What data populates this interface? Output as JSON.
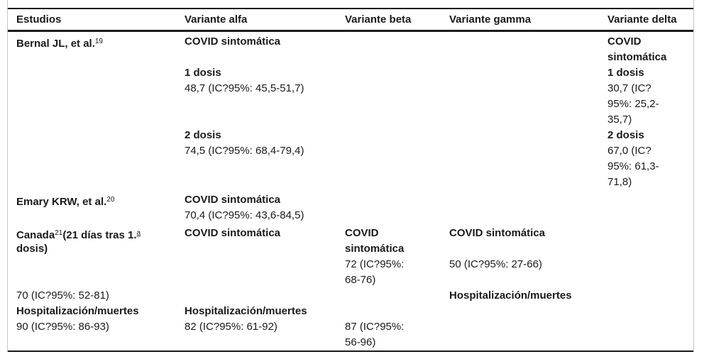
{
  "colors": {
    "rule": "#1a1a1a",
    "outer_border": "#c4c4c4",
    "text": "#1a1a1a",
    "background": "#ffffff"
  },
  "table": {
    "columns": [
      {
        "key": "estudios",
        "label": "Estudios"
      },
      {
        "key": "alfa",
        "label": "Variante alfa"
      },
      {
        "key": "beta",
        "label": "Variante beta"
      },
      {
        "key": "gamma",
        "label": "Variante gamma"
      },
      {
        "key": "delta",
        "label": "Variante delta"
      }
    ],
    "rows": [
      {
        "cells": {
          "estudios": [
            {
              "b": true,
              "s": [
                {
                  "t": "Bernal JL, et al."
                },
                {
                  "t": "19",
                  "sup": true
                }
              ]
            }
          ],
          "alfa": [
            {
              "b": true,
              "s": [
                {
                  "t": "COVID sintomática"
                }
              ]
            },
            null,
            {
              "b": true,
              "s": [
                {
                  "t": "1 dosis"
                }
              ]
            },
            {
              "b": false,
              "s": [
                {
                  "t": "48,7 (IC?95%: 45,5-51,7)"
                }
              ]
            },
            null,
            null,
            {
              "b": true,
              "s": [
                {
                  "t": "2 dosis"
                }
              ]
            },
            {
              "b": false,
              "s": [
                {
                  "t": "74,5 (IC?95%: 68,4-79,4)"
                }
              ]
            }
          ],
          "beta": [],
          "gamma": [],
          "delta": [
            {
              "b": true,
              "s": [
                {
                  "t": "COVID"
                }
              ]
            },
            {
              "b": true,
              "s": [
                {
                  "t": "sintomática"
                }
              ]
            },
            {
              "b": true,
              "s": [
                {
                  "t": "1 dosis"
                }
              ]
            },
            {
              "b": false,
              "s": [
                {
                  "t": "30,7 (IC?"
                }
              ]
            },
            {
              "b": false,
              "s": [
                {
                  "t": "95%: 25,2-"
                }
              ]
            },
            {
              "b": false,
              "s": [
                {
                  "t": "35,7)"
                }
              ]
            },
            {
              "b": true,
              "s": [
                {
                  "t": "2 dosis"
                }
              ]
            },
            {
              "b": false,
              "s": [
                {
                  "t": "67,0 (IC?"
                }
              ]
            },
            {
              "b": false,
              "s": [
                {
                  "t": "95%: 61,3-"
                }
              ]
            },
            {
              "b": false,
              "s": [
                {
                  "t": "71,8)"
                }
              ]
            }
          ]
        }
      },
      {
        "cells": {
          "estudios": [
            {
              "b": true,
              "s": [
                {
                  "t": "Emary KRW, et al."
                },
                {
                  "t": "20",
                  "sup": true
                }
              ]
            }
          ],
          "alfa": [
            {
              "b": true,
              "s": [
                {
                  "t": "COVID sintomática"
                }
              ]
            },
            {
              "b": false,
              "s": [
                {
                  "t": "70,4 (IC?95%: 43,6-84,5)"
                }
              ]
            }
          ],
          "beta": [],
          "gamma": [],
          "delta": []
        }
      },
      {
        "cells": {
          "estudios": [
            {
              "b": true,
              "s": [
                {
                  "t": "Canada"
                },
                {
                  "t": "21",
                  "sup": true
                },
                {
                  "t": "(21 días tras 1."
                },
                {
                  "t": "a",
                  "sup": true,
                  "u": true
                }
              ]
            },
            {
              "b": true,
              "s": [
                {
                  "t": "dosis)"
                }
              ]
            },
            null,
            null,
            {
              "b": false,
              "s": [
                {
                  "t": "70 (IC?95%: 52-81)"
                }
              ]
            },
            {
              "b": true,
              "s": [
                {
                  "t": "Hospitalización/muertes"
                }
              ]
            },
            {
              "b": false,
              "s": [
                {
                  "t": "90 (IC?95%: 86-93)"
                }
              ]
            }
          ],
          "alfa": [
            {
              "b": true,
              "s": [
                {
                  "t": "COVID sintomática"
                }
              ]
            },
            null,
            null,
            null,
            null,
            {
              "b": true,
              "s": [
                {
                  "t": "Hospitalización/muertes"
                }
              ]
            },
            {
              "b": false,
              "s": [
                {
                  "t": "82 (IC?95%: 61-92)"
                }
              ]
            }
          ],
          "beta": [
            {
              "b": true,
              "s": [
                {
                  "t": "COVID"
                }
              ]
            },
            {
              "b": true,
              "s": [
                {
                  "t": "sintomática"
                }
              ]
            },
            {
              "b": false,
              "s": [
                {
                  "t": "72 (IC?95%:"
                }
              ]
            },
            {
              "b": false,
              "s": [
                {
                  "t": "68-76)"
                }
              ]
            },
            null,
            null,
            {
              "b": false,
              "s": [
                {
                  "t": "87 (IC?95%:"
                }
              ]
            },
            {
              "b": false,
              "s": [
                {
                  "t": "56-96)"
                }
              ]
            }
          ],
          "gamma": [
            {
              "b": true,
              "s": [
                {
                  "t": "COVID sintomática"
                }
              ]
            },
            null,
            {
              "b": false,
              "s": [
                {
                  "t": "50 (IC?95%: 27-66)"
                }
              ]
            },
            null,
            {
              "b": true,
              "s": [
                {
                  "t": "Hospitalización/muertes"
                }
              ]
            }
          ],
          "delta": []
        }
      }
    ]
  }
}
